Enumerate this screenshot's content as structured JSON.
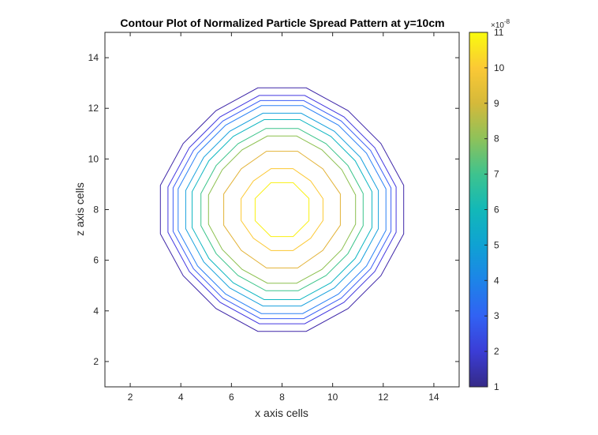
{
  "chart_data": {
    "type": "contour",
    "title": "Contour Plot of Normalized Particle Spread Pattern at y=10cm",
    "xlabel": "x axis cells",
    "ylabel": "z axis cells",
    "xlim": [
      1,
      15
    ],
    "ylim": [
      1,
      15
    ],
    "xticks": [
      2,
      4,
      6,
      8,
      10,
      12,
      14
    ],
    "yticks": [
      2,
      4,
      6,
      8,
      10,
      12,
      14
    ],
    "center": [
      8,
      8
    ],
    "colorbar": {
      "range": [
        1,
        11
      ],
      "ticks": [
        1,
        2,
        3,
        4,
        5,
        6,
        7,
        8,
        9,
        10,
        11
      ],
      "multiplier_text": "×10",
      "multiplier_exponent": "-8",
      "colormap": "parula"
    },
    "levels": [
      {
        "value": 1,
        "radius": 4.8,
        "color": "#3e26a8"
      },
      {
        "value": 2,
        "radius": 4.5,
        "color": "#4238e0"
      },
      {
        "value": 3,
        "radius": 4.3,
        "color": "#3b5ff6"
      },
      {
        "value": 4,
        "radius": 4.1,
        "color": "#2b80f6"
      },
      {
        "value": 5,
        "radius": 3.8,
        "color": "#18a1dd"
      },
      {
        "value": 6,
        "radius": 3.55,
        "color": "#11b7c2"
      },
      {
        "value": 7,
        "radius": 3.2,
        "color": "#3bc48b"
      },
      {
        "value": 8,
        "radius": 2.9,
        "color": "#8cc04f"
      },
      {
        "value": 9,
        "radius": 2.35,
        "color": "#e2b236"
      },
      {
        "value": 10,
        "radius": 1.65,
        "color": "#fcc832"
      },
      {
        "value": 11,
        "radius": 1.15,
        "color": "#f9f012"
      }
    ]
  }
}
